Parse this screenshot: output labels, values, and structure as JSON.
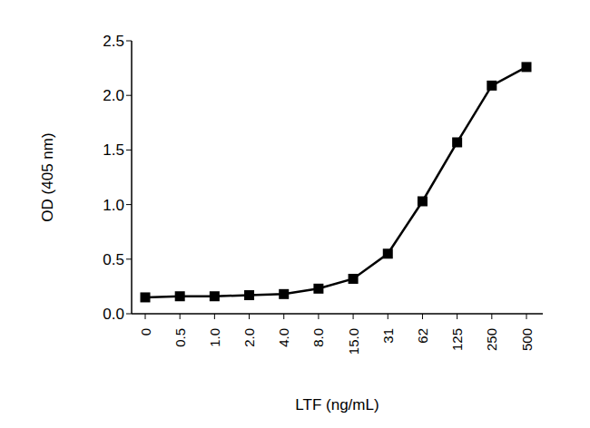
{
  "chart_data": {
    "type": "line",
    "x_label": "LTF (ng/mL)",
    "y_label": "OD (405 nm)",
    "categories": [
      "0",
      "0.5",
      "1.0",
      "2.0",
      "4.0",
      "8.0",
      "15.0",
      "31",
      "62",
      "125",
      "250",
      "500"
    ],
    "values": [
      0.15,
      0.16,
      0.16,
      0.17,
      0.18,
      0.23,
      0.32,
      0.55,
      1.03,
      1.57,
      2.09,
      2.26
    ],
    "color": "#000000",
    "marker": "square",
    "ylim": [
      0,
      2.5
    ],
    "yticks": [
      {
        "value": 0,
        "label": "0.0"
      },
      0.5,
      {
        "value": 1,
        "label": "1.0"
      },
      1.5,
      {
        "value": 2,
        "label": "2.0"
      },
      2.5
    ],
    "grid": false
  }
}
